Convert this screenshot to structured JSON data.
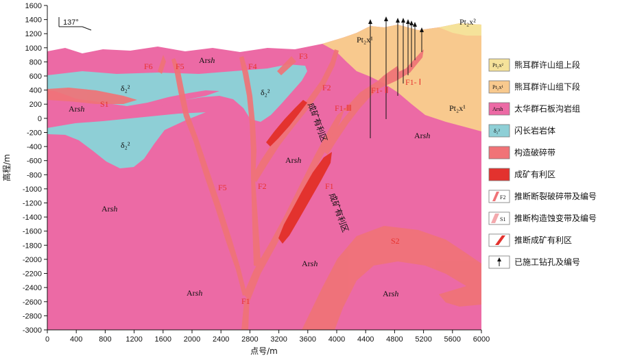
{
  "axes": {
    "y_title": "高程/m",
    "x_title": "点号/m",
    "y_ticks": [
      "1600",
      "1400",
      "1200",
      "1000",
      "800",
      "600",
      "400",
      "200",
      "0",
      "-200",
      "-400",
      "-600",
      "-800",
      "-1000",
      "-1200",
      "-1400",
      "-1600",
      "-1800",
      "-2000",
      "-2200",
      "-2400",
      "-2600",
      "-2800",
      "-3000"
    ],
    "x_ticks": [
      "0",
      "400",
      "800",
      "1200",
      "1600",
      "2000",
      "2400",
      "2800",
      "3200",
      "3600",
      "4000",
      "4400",
      "4800",
      "5200",
      "5600",
      "6000"
    ]
  },
  "azimuth": "137°",
  "units": {
    "arsh_prefix": "Ar",
    "arsh_suffix": "sh",
    "pt_x2": "Pt₂x²",
    "pt_x1": "Pt₂x¹",
    "delta": "δ₂²"
  },
  "faults": {
    "F1": "F1",
    "F2": "F2",
    "F3": "F3",
    "F4": "F4",
    "F5": "F5",
    "F6": "F6",
    "F1_I": "F1- Ⅰ",
    "F1_II": "F1- Ⅱ",
    "F1_III": "F1-Ⅲ",
    "S1": "S1",
    "S2": "S2"
  },
  "ore_zone_label": "成矿有利区",
  "legend": [
    {
      "box": "Pt₂x²",
      "text": "熊耳群许山组上段",
      "color": "#f5e29a"
    },
    {
      "box": "Pt₂x¹",
      "text": "熊耳群许山组下段",
      "color": "#f8c98e"
    },
    {
      "box": "Arsh",
      "text": "太华群石板沟岩组",
      "color": "#ec6aa5"
    },
    {
      "box": "δ₂²",
      "text": "闪长岩岩体",
      "color": "#8ecfd6"
    },
    {
      "box": "",
      "text": "构造破碎带",
      "color": "#f07377"
    },
    {
      "box": "",
      "text": "成矿有利区",
      "color": "#e3322e"
    },
    {
      "box": "F2",
      "text": "推断断裂破碎带及编号",
      "color": "#f3a9ad"
    },
    {
      "box": "S1",
      "text": "推断构造蚀变带及编号",
      "color": "#f3a9ad"
    },
    {
      "box": "",
      "text": "推断成矿有利区",
      "color": "#e3322e"
    },
    {
      "box": "",
      "text": "已施工钻孔及编号",
      "color": "#ffffff"
    }
  ],
  "colors": {
    "arsh": "#ec6aa5",
    "pt_x1": "#f8c98e",
    "pt_x2": "#f5e29a",
    "diorite": "#8ecfd6",
    "fault_zone": "#f07377",
    "ore_zone": "#e3322e"
  }
}
